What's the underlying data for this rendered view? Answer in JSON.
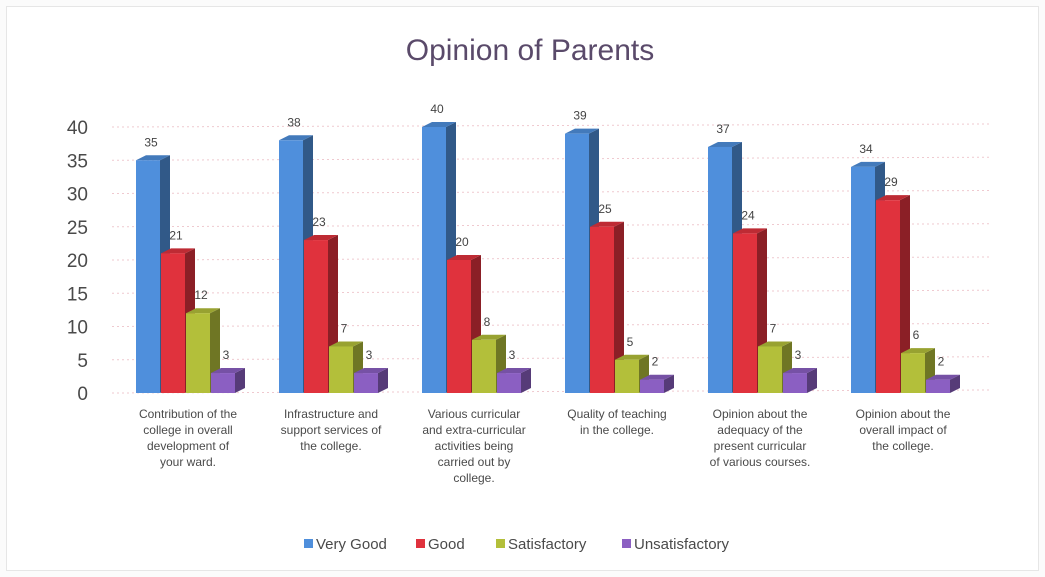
{
  "chart_data": {
    "type": "bar",
    "title": "Opinion of Parents",
    "xlabel": "",
    "ylabel": "",
    "ylim": [
      0,
      40
    ],
    "yticks": [
      0,
      5,
      10,
      15,
      20,
      25,
      30,
      35,
      40
    ],
    "grid": true,
    "legend_position": "bottom",
    "categories": [
      [
        "Contribution of the",
        "college in overall",
        "development of",
        "your ward."
      ],
      [
        "Infrastructure and",
        "support services of",
        "the college."
      ],
      [
        "Various curricular",
        "and extra-curricular",
        "activities being",
        "carried out by",
        "college."
      ],
      [
        "Quality of teaching",
        "in the college."
      ],
      [
        "Opinion about the",
        "adequacy of the",
        "present curricular",
        "of various courses."
      ],
      [
        "Opinion about the",
        "overall impact of",
        "the college."
      ]
    ],
    "series": [
      {
        "name": "Very Good",
        "color": "#4f8fdc",
        "values": [
          35,
          38,
          40,
          39,
          37,
          34
        ]
      },
      {
        "name": "Good",
        "color": "#e0323d",
        "values": [
          21,
          23,
          20,
          25,
          24,
          29
        ]
      },
      {
        "name": "Satisfactory",
        "color": "#b3bf3a",
        "values": [
          12,
          7,
          8,
          5,
          7,
          6
        ]
      },
      {
        "name": "Unsatisfactory",
        "color": "#8b5fc2",
        "values": [
          3,
          3,
          3,
          2,
          3,
          2
        ]
      }
    ]
  }
}
